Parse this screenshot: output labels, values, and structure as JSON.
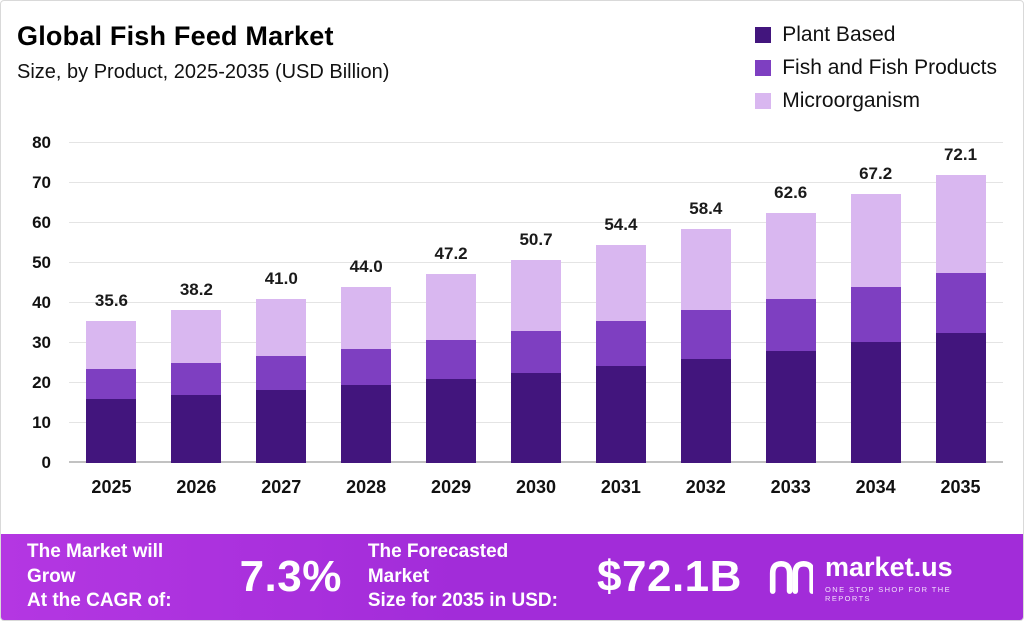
{
  "header": {
    "title": "Global Fish Feed Market",
    "subtitle": "Size, by Product, 2025-2035 (USD Billion)"
  },
  "chart_data": {
    "type": "bar",
    "stacked": true,
    "title": "Global Fish Feed Market Size, by Product, 2025-2035 (USD Billion)",
    "categories": [
      "2025",
      "2026",
      "2027",
      "2028",
      "2029",
      "2030",
      "2031",
      "2032",
      "2033",
      "2034",
      "2035"
    ],
    "series": [
      {
        "name": "Plant Based",
        "color": "#42157d",
        "values": [
          16.0,
          17.0,
          18.2,
          19.5,
          21.0,
          22.5,
          24.2,
          26.0,
          28.0,
          30.2,
          32.4
        ]
      },
      {
        "name": "Fish and Fish Products",
        "color": "#7e3fc1",
        "values": [
          7.5,
          8.0,
          8.5,
          9.0,
          9.7,
          10.5,
          11.3,
          12.2,
          13.0,
          13.8,
          15.0
        ]
      },
      {
        "name": "Microorganism",
        "color": "#d9b7f0",
        "values": [
          12.1,
          13.2,
          14.3,
          15.5,
          16.5,
          17.7,
          18.9,
          20.2,
          21.6,
          23.2,
          24.7
        ]
      }
    ],
    "totals": [
      35.6,
      38.2,
      41.0,
      44.0,
      47.2,
      50.7,
      54.4,
      58.4,
      62.6,
      67.2,
      72.1
    ],
    "total_labels": [
      "35.6",
      "38.2",
      "41.0",
      "44.0",
      "47.2",
      "50.7",
      "54.4",
      "58.4",
      "62.6",
      "67.2",
      "72.1"
    ],
    "xlabel": "",
    "ylabel": "",
    "ylim": [
      0,
      80
    ],
    "yticks": [
      0,
      10,
      20,
      30,
      40,
      50,
      60,
      70,
      80
    ],
    "grid": true,
    "legend_position": "top-right"
  },
  "footer": {
    "cagr_line1": "The Market will Grow",
    "cagr_line2": "At the CAGR of:",
    "cagr_value": "7.3%",
    "forecast_line1": "The Forecasted Market",
    "forecast_line2": "Size for 2035 in USD:",
    "forecast_value": "$72.1B",
    "logo_name": "market.us",
    "logo_tagline": "ONE STOP SHOP FOR THE REPORTS"
  }
}
